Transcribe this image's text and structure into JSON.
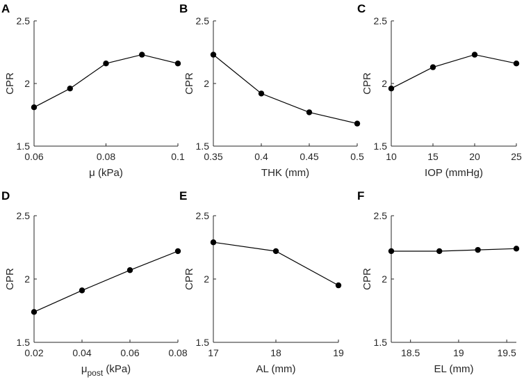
{
  "chart_data": [
    {
      "panel": "A",
      "type": "line",
      "xlabel": "μ (kPa)",
      "xlabel_sub": "",
      "xlabel_tail": "",
      "ylabel": "CPR",
      "xlim": [
        0.06,
        0.1
      ],
      "ylim": [
        1.5,
        2.5
      ],
      "xticks": [
        0.06,
        0.08,
        0.1
      ],
      "xtick_labels": [
        "0.06",
        "0.08",
        "0.1"
      ],
      "yticks": [
        1.5,
        2,
        2.5
      ],
      "ytick_labels": [
        "1.5",
        "2",
        "2.5"
      ],
      "x": [
        0.06,
        0.07,
        0.08,
        0.09,
        0.1
      ],
      "y": [
        1.81,
        1.96,
        2.16,
        2.23,
        2.16
      ]
    },
    {
      "panel": "B",
      "type": "line",
      "xlabel": "THK (mm)",
      "xlabel_sub": "",
      "xlabel_tail": "",
      "ylabel": "CPR",
      "xlim": [
        0.35,
        0.5
      ],
      "ylim": [
        1.5,
        2.5
      ],
      "xticks": [
        0.35,
        0.4,
        0.45,
        0.5
      ],
      "xtick_labels": [
        "0.35",
        "0.4",
        "0.45",
        "0.5"
      ],
      "yticks": [
        1.5,
        2,
        2.5
      ],
      "ytick_labels": [
        "1.5",
        "2",
        "2.5"
      ],
      "x": [
        0.35,
        0.4,
        0.45,
        0.5
      ],
      "y": [
        2.23,
        1.92,
        1.77,
        1.68
      ]
    },
    {
      "panel": "C",
      "type": "line",
      "xlabel": "IOP (mmHg)",
      "xlabel_sub": "",
      "xlabel_tail": "",
      "ylabel": "CPR",
      "xlim": [
        10,
        25
      ],
      "ylim": [
        1.5,
        2.5
      ],
      "xticks": [
        10,
        15,
        20,
        25
      ],
      "xtick_labels": [
        "10",
        "15",
        "20",
        "25"
      ],
      "yticks": [
        1.5,
        2,
        2.5
      ],
      "ytick_labels": [
        "1.5",
        "2",
        "2.5"
      ],
      "x": [
        10,
        15,
        20,
        25
      ],
      "y": [
        1.96,
        2.13,
        2.23,
        2.16
      ]
    },
    {
      "panel": "D",
      "type": "line",
      "xlabel": "μ",
      "xlabel_sub": "post",
      "xlabel_tail": " (kPa)",
      "ylabel": "CPR",
      "xlim": [
        0.02,
        0.08
      ],
      "ylim": [
        1.5,
        2.5
      ],
      "xticks": [
        0.02,
        0.04,
        0.06,
        0.08
      ],
      "xtick_labels": [
        "0.02",
        "0.04",
        "0.06",
        "0.08"
      ],
      "yticks": [
        1.5,
        2,
        2.5
      ],
      "ytick_labels": [
        "1.5",
        "2",
        "2.5"
      ],
      "x": [
        0.02,
        0.04,
        0.06,
        0.08
      ],
      "y": [
        1.74,
        1.91,
        2.07,
        2.22
      ]
    },
    {
      "panel": "E",
      "type": "line",
      "xlabel": "AL (mm)",
      "xlabel_sub": "",
      "xlabel_tail": "",
      "ylabel": "CPR",
      "xlim": [
        17,
        19
      ],
      "ylim": [
        1.5,
        2.5
      ],
      "xticks": [
        17,
        18,
        19
      ],
      "xtick_labels": [
        "17",
        "18",
        "19"
      ],
      "yticks": [
        1.5,
        2,
        2.5
      ],
      "ytick_labels": [
        "1.5",
        "2",
        "2.5"
      ],
      "x": [
        17,
        18,
        19
      ],
      "y": [
        2.29,
        2.22,
        1.95
      ]
    },
    {
      "panel": "F",
      "type": "line",
      "xlabel": "EL (mm)",
      "xlabel_sub": "",
      "xlabel_tail": "",
      "ylabel": "CPR",
      "xlim": [
        18.3,
        19.6
      ],
      "ylim": [
        1.5,
        2.5
      ],
      "xticks": [
        18.5,
        19,
        19.5
      ],
      "xtick_labels": [
        "18.5",
        "19",
        "19.5"
      ],
      "yticks": [
        1.5,
        2,
        2.5
      ],
      "ytick_labels": [
        "1.5",
        "2",
        "2.5"
      ],
      "x": [
        18.3,
        18.8,
        19.2,
        19.6
      ],
      "y": [
        2.22,
        2.22,
        2.23,
        2.24
      ]
    }
  ]
}
